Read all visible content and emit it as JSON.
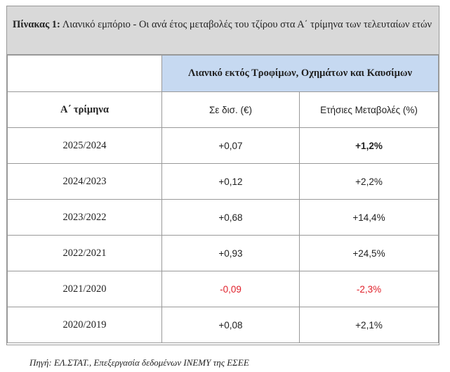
{
  "title": {
    "label": "Πίνακας 1:",
    "text": "Λιανικό εμπόριο - Οι ανά έτος μεταβολές του τζίρου στα Α΄ τρίμηνα των τελευταίων ετών"
  },
  "table": {
    "group_header": "Λιανικό εκτός Τροφίμων, Οχημάτων και Καυσίμων",
    "columns": [
      "Α΄ τρίμηνα",
      "Σε δισ. (€)",
      "Ετήσιες Μεταβολές (%)"
    ],
    "rows": [
      [
        "2025/2024",
        "+0,07",
        "+1,2%"
      ],
      [
        "2024/2023",
        "+0,12",
        "+2,2%"
      ],
      [
        "2023/2022",
        "+0,68",
        "+14,4%"
      ],
      [
        "2022/2021",
        "+0,93",
        "+24,5%"
      ],
      [
        "2021/2020",
        "-0,09",
        "-2,3%"
      ],
      [
        "2020/2019",
        "+0,08",
        "+2,1%"
      ]
    ]
  },
  "source": "Πηγή: ΕΛ.ΣΤΑΤ., Επεξεργασία δεδομένων ΙΝΕΜΥ της ΕΣΕΕ"
}
